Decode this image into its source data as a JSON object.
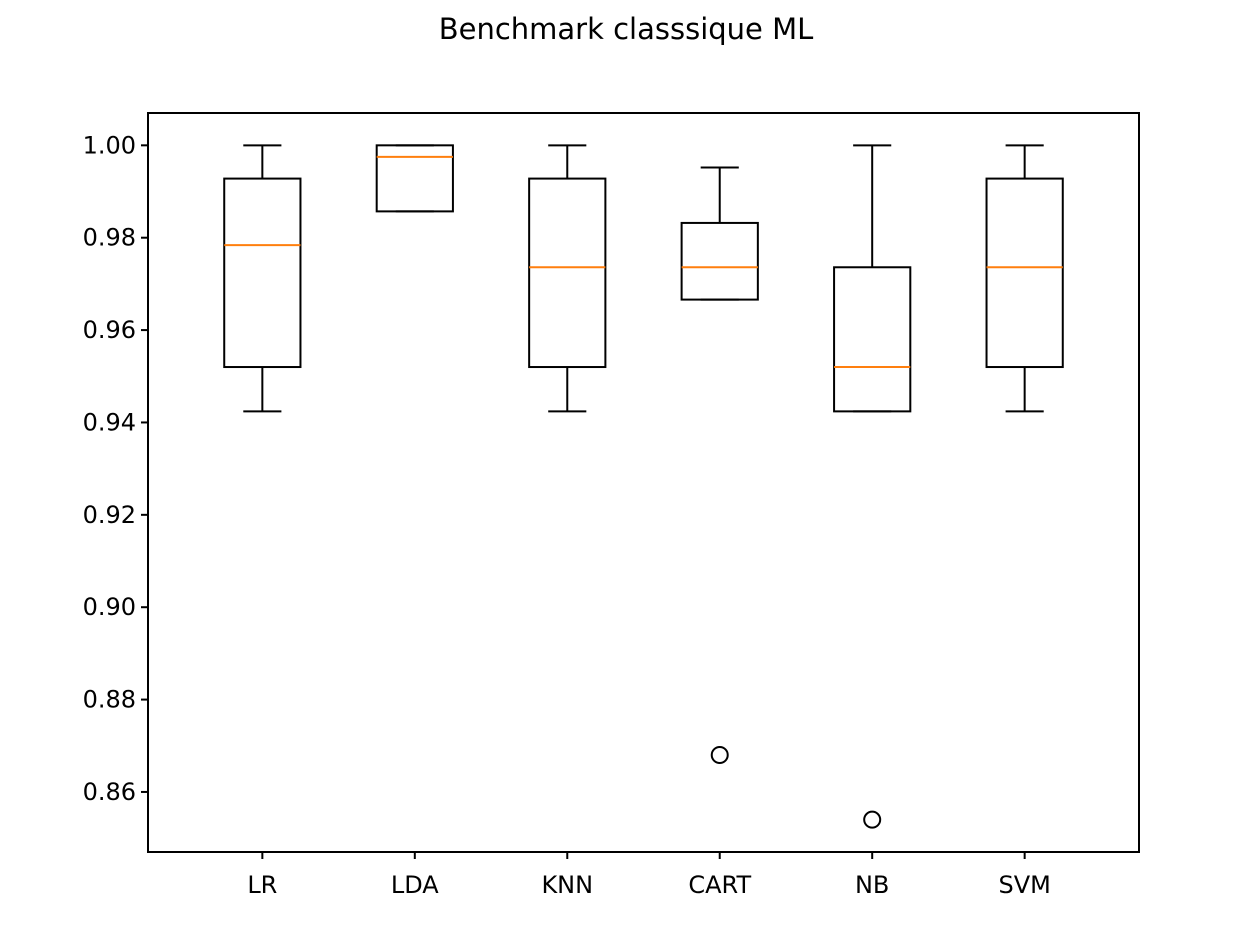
{
  "chart_data": {
    "type": "box",
    "title": "Benchmark classsique ML",
    "xlabel": "",
    "ylabel": "",
    "categories": [
      "LR",
      "LDA",
      "KNN",
      "CART",
      "NB",
      "SVM"
    ],
    "ylim": [
      0.847,
      1.007
    ],
    "yticks": [
      0.86,
      0.88,
      0.9,
      0.92,
      0.94,
      0.96,
      0.98,
      1.0
    ],
    "ytick_labels": [
      "0.86",
      "0.88",
      "0.90",
      "0.92",
      "0.94",
      "0.96",
      "0.98",
      "1.00"
    ],
    "grid": false,
    "series": [
      {
        "category": "LR",
        "whisker_low": 0.9424,
        "q1": 0.952,
        "median": 0.9784,
        "q3": 0.9928,
        "whisker_high": 1.0,
        "outliers": []
      },
      {
        "category": "LDA",
        "whisker_low": 0.9857,
        "q1": 0.9857,
        "median": 0.9975,
        "q3": 1.0,
        "whisker_high": 1.0,
        "outliers": []
      },
      {
        "category": "KNN",
        "whisker_low": 0.9424,
        "q1": 0.952,
        "median": 0.9736,
        "q3": 0.9928,
        "whisker_high": 1.0,
        "outliers": []
      },
      {
        "category": "CART",
        "whisker_low": 0.9666,
        "q1": 0.9666,
        "median": 0.9736,
        "q3": 0.9832,
        "whisker_high": 0.9952,
        "outliers": [
          0.868
        ]
      },
      {
        "category": "NB",
        "whisker_low": 0.9424,
        "q1": 0.9424,
        "median": 0.952,
        "q3": 0.9736,
        "whisker_high": 1.0,
        "outliers": [
          0.854
        ]
      },
      {
        "category": "SVM",
        "whisker_low": 0.9424,
        "q1": 0.952,
        "median": 0.9736,
        "q3": 0.9928,
        "whisker_high": 1.0,
        "outliers": []
      }
    ],
    "colors": {
      "box": "#000000",
      "median": "#ff7f0e",
      "axes": "#000000",
      "background": "#ffffff"
    }
  }
}
